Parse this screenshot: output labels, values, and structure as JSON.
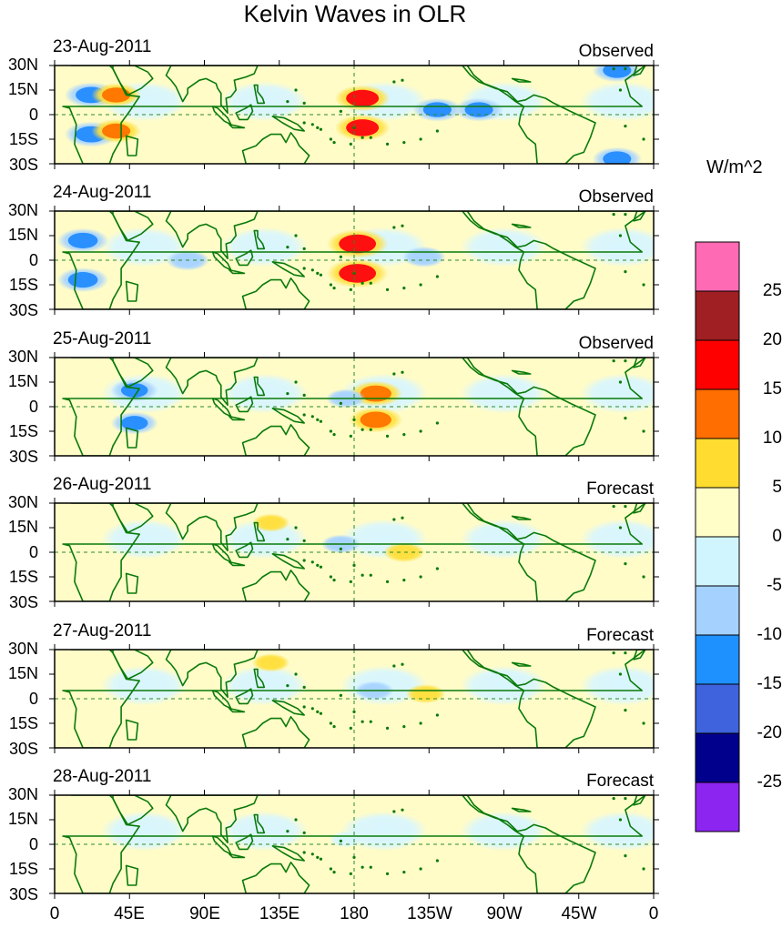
{
  "title": "Kelvin Waves in OLR",
  "units_label": "W/m^2",
  "colors": {
    "land": "#0a7a0a",
    "ref_line": "#2a8a2a",
    "pos1": "#fffcc8",
    "pos2": "#ffe040",
    "pos3": "#ff7800",
    "pos4": "#ff1010",
    "neg1": "#d8f6ff",
    "neg2": "#a8d4ff",
    "neg3": "#2a90ff"
  },
  "chart_data": {
    "type": "heatmap",
    "title": "Kelvin Waves in OLR",
    "variable": "OLR anomaly (Kelvin wave filtered)",
    "units": "W/m^2",
    "x_axis": {
      "ticks": [
        "0",
        "45E",
        "90E",
        "135E",
        "180",
        "135W",
        "90W",
        "45W",
        "0"
      ],
      "range_deg": [
        0,
        360
      ]
    },
    "y_axis": {
      "ticks": [
        "30N",
        "15N",
        "0",
        "15S",
        "30S"
      ],
      "range_deg": [
        -30,
        30
      ]
    },
    "colorbar": {
      "levels": [
        "25",
        "20",
        "15",
        "10",
        "5",
        "0",
        "-5",
        "-10",
        "-15",
        "-20",
        "-25"
      ],
      "colors": [
        "#ff6ab4",
        "#a01f22",
        "#ff0000",
        "#ff6e00",
        "#ffdc2f",
        "#fffdc8",
        "#d1f5fe",
        "#a5d1ff",
        "#1e91ff",
        "#3e63dc",
        "#00008c",
        "#8c25f0"
      ]
    },
    "panels": [
      {
        "date": "23-Aug-2011",
        "status": "Observed",
        "anomalies": [
          {
            "lon": 185,
            "lat": 10,
            "value": 15
          },
          {
            "lon": 185,
            "lat": -8,
            "value": 15
          },
          {
            "lon": 230,
            "lat": 3,
            "value": -12
          },
          {
            "lon": 255,
            "lat": 3,
            "value": -12
          },
          {
            "lon": 22,
            "lat": 12,
            "value": -14
          },
          {
            "lon": 22,
            "lat": -12,
            "value": -14
          },
          {
            "lon": 37,
            "lat": 12,
            "value": 12
          },
          {
            "lon": 37,
            "lat": -10,
            "value": 12
          },
          {
            "lon": 338,
            "lat": 27,
            "value": -12
          },
          {
            "lon": 338,
            "lat": -27,
            "value": -12
          }
        ]
      },
      {
        "date": "24-Aug-2011",
        "status": "Observed",
        "anomalies": [
          {
            "lon": 182,
            "lat": 10,
            "value": 18
          },
          {
            "lon": 182,
            "lat": -8,
            "value": 18
          },
          {
            "lon": 17,
            "lat": 12,
            "value": -13
          },
          {
            "lon": 17,
            "lat": -12,
            "value": -13
          },
          {
            "lon": 80,
            "lat": 0,
            "value": -9
          },
          {
            "lon": 222,
            "lat": 2,
            "value": -9
          }
        ]
      },
      {
        "date": "25-Aug-2011",
        "status": "Observed",
        "anomalies": [
          {
            "lon": 193,
            "lat": 8,
            "value": 14
          },
          {
            "lon": 193,
            "lat": -8,
            "value": 14
          },
          {
            "lon": 48,
            "lat": 10,
            "value": -11
          },
          {
            "lon": 48,
            "lat": -10,
            "value": -11
          },
          {
            "lon": 175,
            "lat": 5,
            "value": -7
          }
        ]
      },
      {
        "date": "26-Aug-2011",
        "status": "Forecast",
        "anomalies": [
          {
            "lon": 210,
            "lat": 0,
            "value": 8
          },
          {
            "lon": 172,
            "lat": 5,
            "value": -7
          },
          {
            "lon": 130,
            "lat": 18,
            "value": 6
          }
        ]
      },
      {
        "date": "27-Aug-2011",
        "status": "Forecast",
        "anomalies": [
          {
            "lon": 223,
            "lat": 3,
            "value": 7
          },
          {
            "lon": 192,
            "lat": 5,
            "value": -7
          },
          {
            "lon": 130,
            "lat": 22,
            "value": 6
          }
        ]
      },
      {
        "date": "28-Aug-2011",
        "status": "Forecast",
        "anomalies": [
          {
            "lon": 240,
            "lat": 0,
            "value": 4
          },
          {
            "lon": 175,
            "lat": 3,
            "value": -4
          }
        ]
      }
    ]
  }
}
